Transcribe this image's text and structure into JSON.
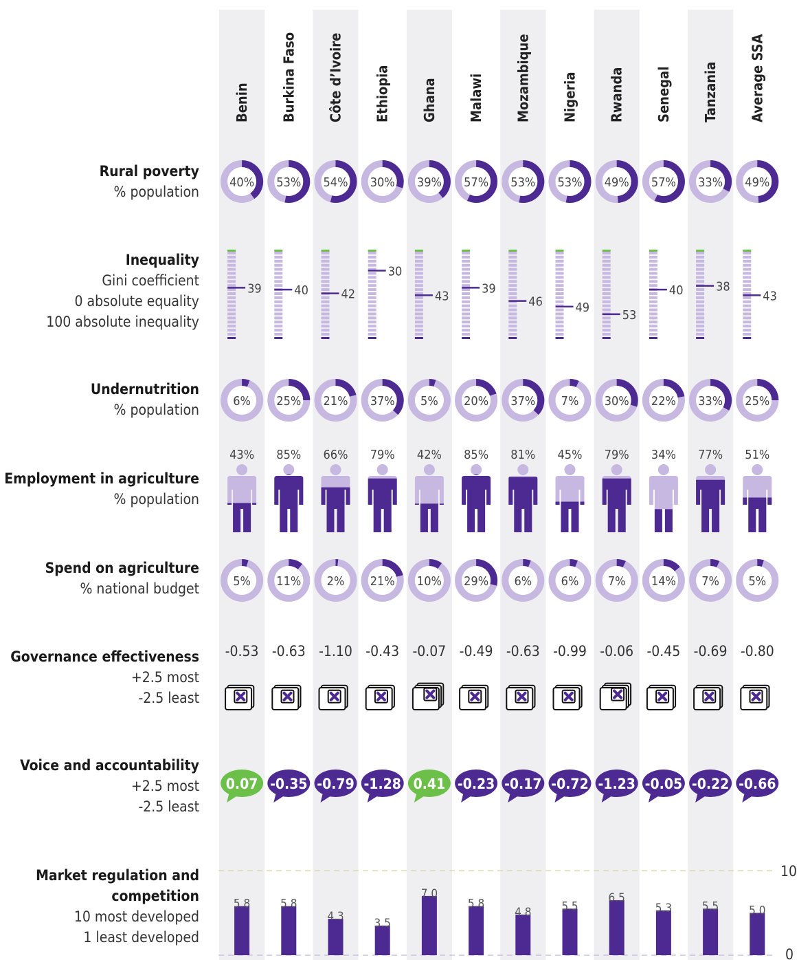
{
  "countries": [
    "Benin",
    "Burkina Faso",
    "Côte d’Ivoire",
    "Ethiopia",
    "Ghana",
    "Malawi",
    "Mozambique",
    "Nigeria",
    "Rwanda",
    "Senegal",
    "Tanzania",
    "Average SSA"
  ],
  "labels": {
    "rural_poverty": [
      "Rural poverty",
      "% population"
    ],
    "inequality": [
      "Inequality",
      "Gini coefficient",
      "0 absolute equality",
      "100 absolute inequality"
    ],
    "undernutrition": [
      "Undernutrition",
      "% population"
    ],
    "employment": [
      "Employment in agriculture",
      "% population"
    ],
    "spend": [
      "Spend on agriculture",
      "% national budget"
    ],
    "governance": [
      "Governance effectiveness",
      "+2.5 most",
      "-2.5 least"
    ],
    "voice": [
      "Voice and accountability",
      "+2.5 most",
      "-2.5 least"
    ],
    "market": [
      "Market regulation and",
      "competition",
      "10 most developed",
      "1 least developed"
    ]
  },
  "colors": {
    "purple": "#4c2a91",
    "light_purple": "#c6b8e0",
    "green": "#6cc04a",
    "column_bg": "#efeff1"
  },
  "chart_data": [
    {
      "type": "pie",
      "title": "Rural poverty",
      "unit": "% population",
      "categories": [
        "Benin",
        "Burkina Faso",
        "Côte d’Ivoire",
        "Ethiopia",
        "Ghana",
        "Malawi",
        "Mozambique",
        "Nigeria",
        "Rwanda",
        "Senegal",
        "Tanzania",
        "Average SSA"
      ],
      "values": [
        40,
        53,
        54,
        30,
        39,
        57,
        53,
        53,
        49,
        57,
        33,
        49
      ],
      "display": [
        "40%",
        "53%",
        "54%",
        "30%",
        "39%",
        "57%",
        "53%",
        "53%",
        "49%",
        "57%",
        "33%",
        "49%"
      ]
    },
    {
      "type": "scatter",
      "title": "Inequality",
      "unit": "Gini coefficient",
      "ylim": [
        0,
        100
      ],
      "categories": [
        "Benin",
        "Burkina Faso",
        "Côte d’Ivoire",
        "Ethiopia",
        "Ghana",
        "Malawi",
        "Mozambique",
        "Nigeria",
        "Rwanda",
        "Senegal",
        "Tanzania",
        "Average SSA"
      ],
      "values": [
        39,
        40,
        42,
        30,
        43,
        39,
        46,
        49,
        53,
        40,
        38,
        43
      ],
      "display": [
        "39",
        "40",
        "42",
        "30",
        "43",
        "39",
        "46",
        "49",
        "53",
        "40",
        "38",
        "43"
      ]
    },
    {
      "type": "pie",
      "title": "Undernutrition",
      "unit": "% population",
      "categories": [
        "Benin",
        "Burkina Faso",
        "Côte d’Ivoire",
        "Ethiopia",
        "Ghana",
        "Malawi",
        "Mozambique",
        "Nigeria",
        "Rwanda",
        "Senegal",
        "Tanzania",
        "Average SSA"
      ],
      "values": [
        6,
        25,
        21,
        37,
        5,
        20,
        37,
        7,
        30,
        22,
        33,
        25
      ],
      "display": [
        "6%",
        "25%",
        "21%",
        "37%",
        "5%",
        "20%",
        "37%",
        "7%",
        "30%",
        "22%",
        "33%",
        "25%"
      ]
    },
    {
      "type": "bar",
      "title": "Employment in agriculture",
      "unit": "% population",
      "categories": [
        "Benin",
        "Burkina Faso",
        "Côte d’Ivoire",
        "Ethiopia",
        "Ghana",
        "Malawi",
        "Mozambique",
        "Nigeria",
        "Rwanda",
        "Senegal",
        "Tanzania",
        "Average SSA"
      ],
      "values": [
        43,
        85,
        66,
        79,
        42,
        85,
        81,
        45,
        79,
        34,
        77,
        51
      ],
      "display": [
        "43%",
        "85%",
        "66%",
        "79%",
        "42%",
        "85%",
        "81%",
        "45%",
        "79%",
        "34%",
        "77%",
        "51%"
      ]
    },
    {
      "type": "pie",
      "title": "Spend on agriculture",
      "unit": "% national budget",
      "categories": [
        "Benin",
        "Burkina Faso",
        "Côte d’Ivoire",
        "Ethiopia",
        "Ghana",
        "Malawi",
        "Mozambique",
        "Nigeria",
        "Rwanda",
        "Senegal",
        "Tanzania",
        "Average SSA"
      ],
      "values": [
        5,
        11,
        2,
        21,
        10,
        29,
        6,
        6,
        7,
        14,
        7,
        5
      ],
      "display": [
        "5%",
        "11%",
        "2%",
        "21%",
        "10%",
        "29%",
        "6%",
        "6%",
        "7%",
        "14%",
        "7%",
        "5%"
      ]
    },
    {
      "type": "scatter",
      "title": "Governance effectiveness",
      "ylim": [
        -2.5,
        2.5
      ],
      "categories": [
        "Benin",
        "Burkina Faso",
        "Côte d’Ivoire",
        "Ethiopia",
        "Ghana",
        "Malawi",
        "Mozambique",
        "Nigeria",
        "Rwanda",
        "Senegal",
        "Tanzania",
        "Average SSA"
      ],
      "values": [
        -0.53,
        -0.63,
        -1.1,
        -0.43,
        -0.07,
        -0.49,
        -0.63,
        -0.99,
        -0.06,
        -0.45,
        -0.69,
        -0.8
      ],
      "display": [
        "-0.53",
        "-0.63",
        "-1.10",
        "-0.43",
        "-0.07",
        "-0.49",
        "-0.63",
        "-0.99",
        "-0.06",
        "-0.45",
        "-0.69",
        "-0.80"
      ]
    },
    {
      "type": "scatter",
      "title": "Voice and accountability",
      "ylim": [
        -2.5,
        2.5
      ],
      "categories": [
        "Benin",
        "Burkina Faso",
        "Côte d’Ivoire",
        "Ethiopia",
        "Ghana",
        "Malawi",
        "Mozambique",
        "Nigeria",
        "Rwanda",
        "Senegal",
        "Tanzania",
        "Average SSA"
      ],
      "values": [
        0.07,
        -0.35,
        -0.79,
        -1.28,
        0.41,
        -0.23,
        -0.17,
        -0.72,
        -1.23,
        -0.05,
        -0.22,
        -0.66
      ],
      "display": [
        "0.07",
        "-0.35",
        "-0.79",
        "-1.28",
        "0.41",
        "-0.23",
        "-0.17",
        "-0.72",
        "-1.23",
        "-0.05",
        "-0.22",
        "-0.66"
      ]
    },
    {
      "type": "bar",
      "title": "Market regulation and competition",
      "ylim": [
        0,
        10
      ],
      "yticks": [
        "10",
        "0"
      ],
      "categories": [
        "Benin",
        "Burkina Faso",
        "Côte d’Ivoire",
        "Ethiopia",
        "Ghana",
        "Malawi",
        "Mozambique",
        "Nigeria",
        "Rwanda",
        "Senegal",
        "Tanzania",
        "Average SSA"
      ],
      "values": [
        5.8,
        5.8,
        4.3,
        3.5,
        7.0,
        5.8,
        4.8,
        5.5,
        6.5,
        5.3,
        5.5,
        5.0
      ],
      "display": [
        "5.8",
        "5.8",
        "4.3",
        "3.5",
        "7.0",
        "5.8",
        "4.8",
        "5.5",
        "6.5",
        "5.3",
        "5.5",
        "5.0"
      ]
    }
  ]
}
